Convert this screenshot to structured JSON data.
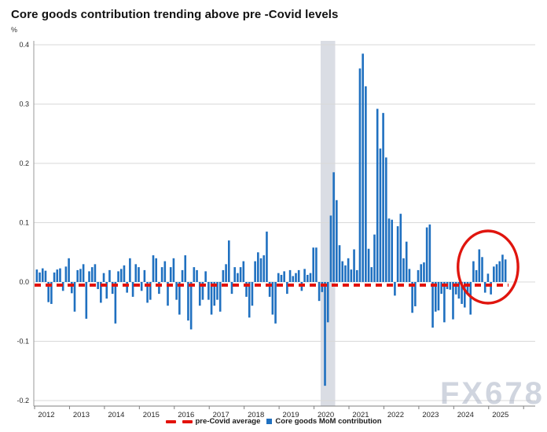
{
  "header": {
    "title": "Core goods contribution trending above pre -Covid levels",
    "unit": "%"
  },
  "watermark": {
    "text": "FX678"
  },
  "legend": {
    "items": [
      {
        "label": "pre-Covid average",
        "symbol": "red-dash",
        "color": "#e3120b"
      },
      {
        "label": "Core goods MoM contribution",
        "symbol": "blue-square",
        "color": "#1f70c0"
      }
    ]
  },
  "chart_data": {
    "type": "bar",
    "title": "Core goods contribution trending above pre -Covid levels",
    "xlabel": "",
    "ylabel": "%",
    "ylim": [
      -0.2,
      0.4
    ],
    "grid": true,
    "legend_position": "bottom-center",
    "yticks": [
      {
        "v": 0.4,
        "label": "0.4"
      },
      {
        "v": 0.3,
        "label": "0.3"
      },
      {
        "v": 0.2,
        "label": "0.2"
      },
      {
        "v": 0.1,
        "label": "0.1"
      },
      {
        "v": 0.0,
        "label": "0.0"
      },
      {
        "v": -0.1,
        "label": "-0.1"
      },
      {
        "v": -0.2,
        "label": "-0.2"
      }
    ],
    "year_labels": [
      "2012",
      "2013",
      "2014",
      "2015",
      "2016",
      "2017",
      "2018",
      "2019",
      "2020",
      "2021",
      "2022",
      "2023",
      "2024",
      "2025"
    ],
    "start": "2012-01",
    "bar_color": "#1f70c0",
    "baseline": {
      "name": "pre-Covid average",
      "value": -0.008,
      "color": "#e3120b",
      "style": "dashed"
    },
    "recession_band": {
      "from": "2020-03",
      "to": "2020-08",
      "color": "#dadde4"
    },
    "annotation_circle": {
      "from": "2024-06",
      "to": "2025-06",
      "color": "#e0150e"
    },
    "series": [
      {
        "name": "Core goods MoM contribution",
        "values": [
          0.021,
          0.016,
          0.023,
          0.019,
          -0.034,
          -0.037,
          0.016,
          0.021,
          0.023,
          -0.015,
          0.026,
          0.04,
          -0.019,
          -0.05,
          0.02,
          0.022,
          0.03,
          -0.062,
          0.018,
          0.025,
          0.03,
          -0.012,
          -0.035,
          0.015,
          -0.028,
          0.02,
          -0.02,
          -0.07,
          0.018,
          0.022,
          0.028,
          -0.018,
          0.04,
          -0.025,
          0.03,
          0.025,
          -0.015,
          0.02,
          -0.035,
          -0.03,
          0.045,
          0.04,
          -0.02,
          0.025,
          0.035,
          -0.04,
          0.025,
          0.04,
          -0.03,
          -0.055,
          0.02,
          0.045,
          -0.065,
          -0.08,
          0.025,
          0.02,
          -0.04,
          -0.03,
          0.018,
          -0.03,
          -0.055,
          -0.04,
          -0.03,
          -0.05,
          0.02,
          0.03,
          0.07,
          -0.02,
          0.025,
          0.015,
          0.025,
          0.035,
          -0.025,
          -0.06,
          -0.04,
          0.035,
          0.05,
          0.04,
          0.045,
          0.085,
          -0.025,
          -0.055,
          -0.07,
          0.015,
          0.012,
          0.018,
          -0.02,
          0.02,
          0.01,
          0.015,
          0.02,
          -0.015,
          0.022,
          0.012,
          0.015,
          0.058,
          0.058,
          -0.032,
          -0.017,
          -0.175,
          -0.068,
          0.112,
          0.185,
          0.138,
          0.062,
          0.035,
          0.028,
          0.04,
          0.021,
          0.055,
          0.02,
          0.36,
          0.385,
          0.33,
          0.056,
          0.025,
          0.08,
          0.292,
          0.225,
          0.285,
          0.21,
          0.107,
          0.105,
          -0.023,
          0.094,
          0.115,
          0.04,
          0.068,
          0.022,
          -0.052,
          -0.041,
          0.02,
          0.03,
          0.033,
          0.092,
          0.097,
          -0.077,
          -0.05,
          -0.048,
          -0.02,
          -0.068,
          -0.012,
          -0.013,
          -0.063,
          -0.021,
          -0.028,
          -0.037,
          -0.043,
          -0.02,
          -0.055,
          0.035,
          0.02,
          0.055,
          0.042,
          -0.018,
          0.014,
          -0.021,
          0.026,
          0.03,
          0.035,
          0.046,
          0.038
        ]
      }
    ]
  }
}
